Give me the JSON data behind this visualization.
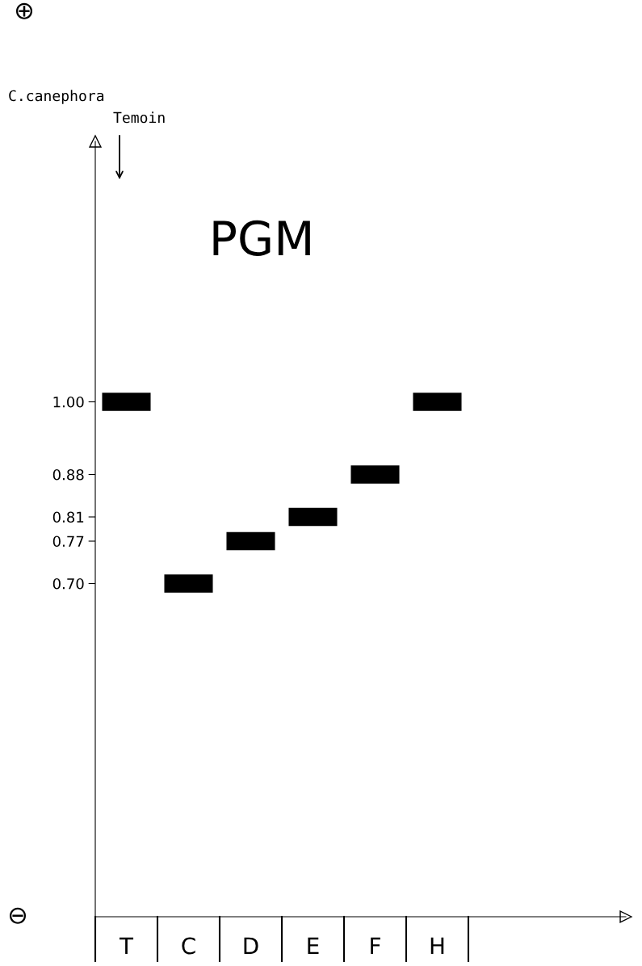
{
  "chart_data": {
    "type": "bar",
    "title": "PGM",
    "categories": [
      "T",
      "C",
      "D",
      "E",
      "F",
      "H"
    ],
    "values": [
      0.03,
      0.03,
      0.03,
      0.03,
      0.03,
      0.03
    ],
    "base": [
      0.985,
      0.685,
      0.755,
      0.795,
      0.865,
      0.985
    ],
    "color": "#000000",
    "ylim": [
      0.15,
      1.43
    ],
    "yticks": [
      {
        "value": 1.0,
        "label": "1.00"
      },
      {
        "value": 0.88,
        "label": "0.88"
      },
      {
        "value": 0.81,
        "label": "0.81"
      },
      {
        "value": 0.77,
        "label": "0.77"
      },
      {
        "value": 0.7,
        "label": "0.70"
      }
    ],
    "grid": false,
    "legend": false,
    "annotations": [
      "⊕",
      "⊖",
      "C.canephora",
      "Temoin"
    ]
  }
}
